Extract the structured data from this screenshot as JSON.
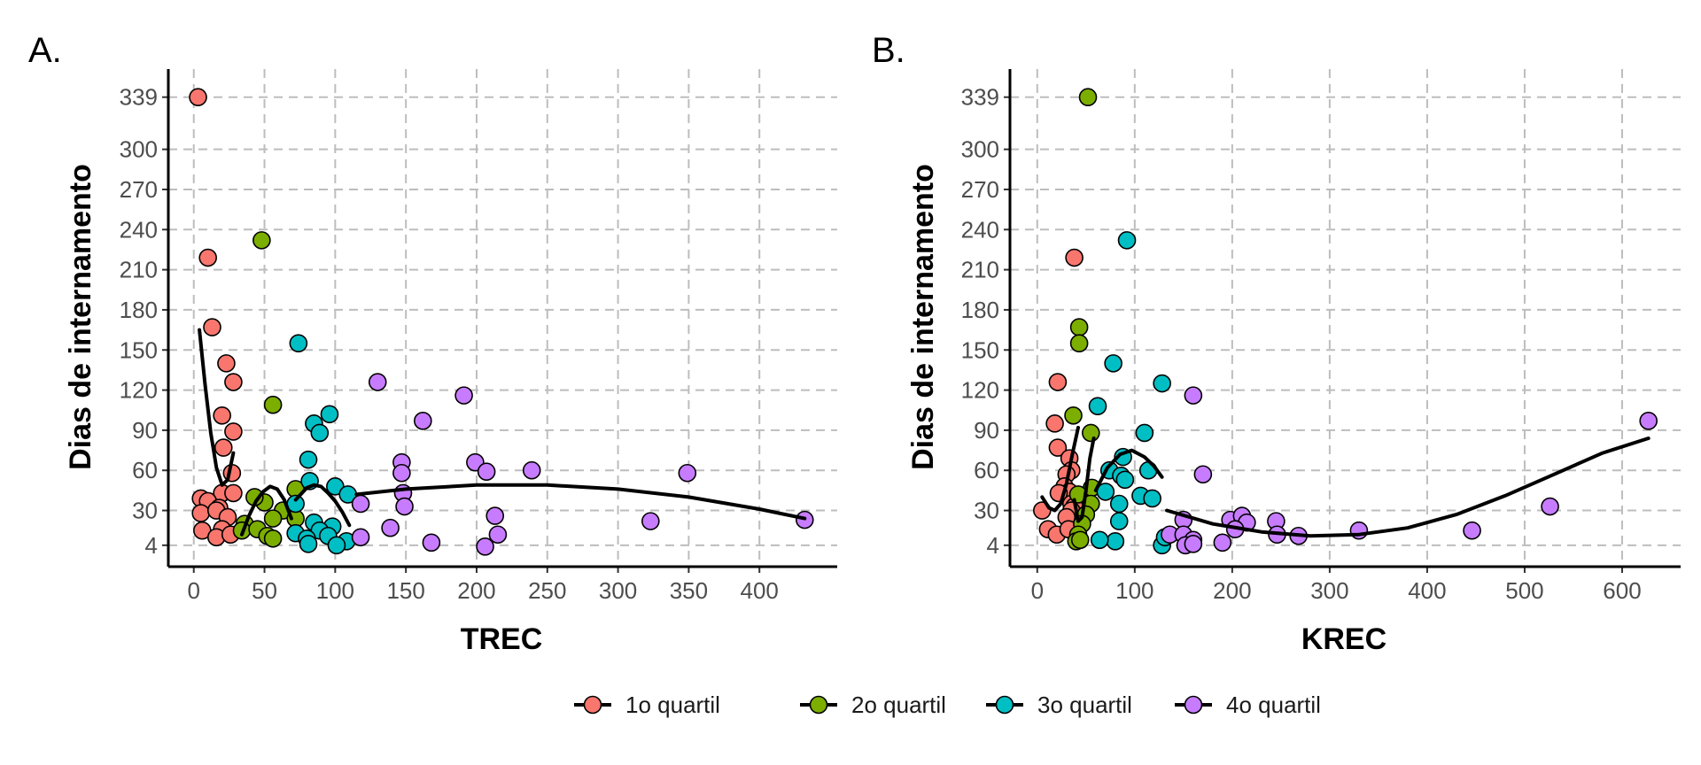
{
  "figure": {
    "legend": {
      "position": "bottom",
      "items": [
        {
          "label": "1o quartil",
          "color": "#F8766D"
        },
        {
          "label": "2o quartil",
          "color": "#7CAE00"
        },
        {
          "label": "3o quartil",
          "color": "#00BFC4"
        },
        {
          "label": "4o quartil",
          "color": "#C77CFF"
        }
      ]
    }
  },
  "chart_data": [
    {
      "type": "scatter",
      "panel": "A.",
      "xlabel": "TREC",
      "ylabel": "Dias de internamento",
      "xlim": [
        -18,
        455
      ],
      "ylim": [
        -12,
        360
      ],
      "xticks": [
        0,
        50,
        100,
        150,
        200,
        250,
        300,
        350,
        400
      ],
      "yticks": [
        4,
        30,
        60,
        90,
        120,
        150,
        180,
        210,
        240,
        270,
        300,
        339
      ],
      "grid": true,
      "legend": "bottom",
      "series": [
        {
          "name": "1o quartil",
          "color": "#F8766D",
          "points": [
            [
              3,
              339
            ],
            [
              10,
              219
            ],
            [
              13,
              167
            ],
            [
              23,
              140
            ],
            [
              28,
              126
            ],
            [
              20,
              101
            ],
            [
              28,
              89
            ],
            [
              21,
              77
            ],
            [
              27,
              58
            ],
            [
              20,
              43
            ],
            [
              28,
              43
            ],
            [
              5,
              39
            ],
            [
              10,
              37
            ],
            [
              18,
              32
            ],
            [
              5,
              28
            ],
            [
              16,
              30
            ],
            [
              24,
              25
            ],
            [
              6,
              15
            ],
            [
              20,
              16
            ],
            [
              16,
              10
            ],
            [
              26,
              12
            ]
          ],
          "trend": [
            [
              4,
              165
            ],
            [
              8,
              124
            ],
            [
              12,
              88
            ],
            [
              16,
              62
            ],
            [
              20,
              49
            ],
            [
              24,
              53
            ],
            [
              28,
              73
            ]
          ]
        },
        {
          "name": "2o quartil",
          "color": "#7CAE00",
          "points": [
            [
              48,
              232
            ],
            [
              56,
              109
            ],
            [
              72,
              46
            ],
            [
              50,
              36
            ],
            [
              43,
              40
            ],
            [
              63,
              30
            ],
            [
              56,
              24
            ],
            [
              72,
              24
            ],
            [
              36,
              20
            ],
            [
              34,
              15
            ],
            [
              45,
              16
            ],
            [
              52,
              11
            ],
            [
              56,
              9
            ]
          ],
          "trend": [
            [
              34,
              12
            ],
            [
              39,
              26
            ],
            [
              44,
              37
            ],
            [
              49,
              44
            ],
            [
              54,
              48
            ],
            [
              59,
              46
            ],
            [
              64,
              38
            ],
            [
              69,
              24
            ]
          ]
        },
        {
          "name": "3o quartil",
          "color": "#00BFC4",
          "points": [
            [
              74,
              155
            ],
            [
              96,
              102
            ],
            [
              85,
              95
            ],
            [
              89,
              88
            ],
            [
              81,
              68
            ],
            [
              82,
              52
            ],
            [
              100,
              48
            ],
            [
              109,
              42
            ],
            [
              72,
              35
            ],
            [
              85,
              21
            ],
            [
              98,
              18
            ],
            [
              89,
              15
            ],
            [
              72,
              13
            ],
            [
              80,
              9
            ],
            [
              95,
              11
            ],
            [
              108,
              7
            ],
            [
              81,
              5
            ],
            [
              101,
              4
            ]
          ],
          "trend": [
            [
              72,
              38
            ],
            [
              80,
              47
            ],
            [
              85,
              49
            ],
            [
              90,
              48
            ],
            [
              95,
              43
            ],
            [
              100,
              37
            ],
            [
              105,
              29
            ],
            [
              110,
              19
            ]
          ]
        },
        {
          "name": "4o quartil",
          "color": "#C77CFF",
          "points": [
            [
              130,
              126
            ],
            [
              191,
              116
            ],
            [
              162,
              97
            ],
            [
              147,
              66
            ],
            [
              199,
              66
            ],
            [
              147,
              58
            ],
            [
              207,
              59
            ],
            [
              239,
              60
            ],
            [
              349,
              58
            ],
            [
              148,
              43
            ],
            [
              118,
              35
            ],
            [
              149,
              33
            ],
            [
              213,
              26
            ],
            [
              139,
              17
            ],
            [
              215,
              12
            ],
            [
              118,
              10
            ],
            [
              168,
              6
            ],
            [
              206,
              3
            ],
            [
              323,
              22
            ],
            [
              432,
              23
            ]
          ],
          "trend": [
            [
              115,
              42
            ],
            [
              150,
              46
            ],
            [
              200,
              49
            ],
            [
              250,
              49
            ],
            [
              300,
              46
            ],
            [
              350,
              40
            ],
            [
              400,
              31
            ],
            [
              432,
              24
            ]
          ]
        }
      ]
    },
    {
      "type": "scatter",
      "panel": "B.",
      "xlabel": "KREC",
      "ylabel": "Dias de internamento",
      "xlim": [
        -28,
        660
      ],
      "ylim": [
        -12,
        360
      ],
      "xticks": [
        0,
        100,
        200,
        300,
        400,
        500,
        600
      ],
      "yticks": [
        4,
        30,
        60,
        90,
        120,
        150,
        180,
        210,
        240,
        270,
        300,
        339
      ],
      "grid": true,
      "legend": "bottom",
      "series": [
        {
          "name": "1o quartil",
          "color": "#F8766D",
          "points": [
            [
              38,
              219
            ],
            [
              21,
              126
            ],
            [
              18,
              95
            ],
            [
              21,
              77
            ],
            [
              33,
              69
            ],
            [
              35,
              60
            ],
            [
              30,
              57
            ],
            [
              28,
              48
            ],
            [
              33,
              44
            ],
            [
              22,
              43
            ],
            [
              35,
              35
            ],
            [
              38,
              33
            ],
            [
              35,
              30
            ],
            [
              5,
              30
            ],
            [
              30,
              25
            ],
            [
              11,
              16
            ],
            [
              20,
              12
            ],
            [
              32,
              16
            ]
          ],
          "trend": [
            [
              5,
              40
            ],
            [
              12,
              32
            ],
            [
              18,
              30
            ],
            [
              24,
              35
            ],
            [
              30,
              50
            ],
            [
              36,
              72
            ],
            [
              42,
              92
            ]
          ]
        },
        {
          "name": "2o quartil",
          "color": "#7CAE00",
          "points": [
            [
              52,
              339
            ],
            [
              43,
              167
            ],
            [
              43,
              155
            ],
            [
              37,
              101
            ],
            [
              55,
              88
            ],
            [
              56,
              47
            ],
            [
              42,
              42
            ],
            [
              55,
              35
            ],
            [
              50,
              27
            ],
            [
              46,
              20
            ],
            [
              42,
              12
            ],
            [
              40,
              7
            ],
            [
              44,
              8
            ]
          ],
          "trend": [
            [
              38,
              38
            ],
            [
              42,
              22
            ],
            [
              46,
              25
            ],
            [
              50,
              45
            ],
            [
              54,
              69
            ],
            [
              58,
              84
            ]
          ]
        },
        {
          "name": "3o quartil",
          "color": "#00BFC4",
          "points": [
            [
              92,
              232
            ],
            [
              78,
              140
            ],
            [
              128,
              125
            ],
            [
              62,
              108
            ],
            [
              110,
              88
            ],
            [
              88,
              70
            ],
            [
              74,
              60
            ],
            [
              86,
              56
            ],
            [
              90,
              53
            ],
            [
              114,
              60
            ],
            [
              106,
              41
            ],
            [
              118,
              39
            ],
            [
              70,
              44
            ],
            [
              84,
              35
            ],
            [
              84,
              22
            ],
            [
              80,
              7
            ],
            [
              64,
              8
            ],
            [
              128,
              4
            ],
            [
              131,
              10
            ]
          ],
          "trend": [
            [
              60,
              45
            ],
            [
              72,
              62
            ],
            [
              85,
              72
            ],
            [
              97,
              75
            ],
            [
              110,
              70
            ],
            [
              120,
              63
            ],
            [
              128,
              55
            ]
          ]
        },
        {
          "name": "4o quartil",
          "color": "#C77CFF",
          "points": [
            [
              627,
              97
            ],
            [
              160,
              116
            ],
            [
              170,
              57
            ],
            [
              526,
              33
            ],
            [
              150,
              23
            ],
            [
              198,
              23
            ],
            [
              210,
              26
            ],
            [
              215,
              21
            ],
            [
              245,
              22
            ],
            [
              203,
              16
            ],
            [
              246,
              12
            ],
            [
              268,
              11
            ],
            [
              330,
              15
            ],
            [
              446,
              15
            ],
            [
              136,
              12
            ],
            [
              150,
              12
            ],
            [
              160,
              8
            ],
            [
              152,
              4
            ],
            [
              160,
              5
            ],
            [
              190,
              6
            ]
          ],
          "trend": [
            [
              133,
              30
            ],
            [
              180,
              20
            ],
            [
              230,
              14
            ],
            [
              280,
              11
            ],
            [
              330,
              12
            ],
            [
              380,
              17
            ],
            [
              430,
              27
            ],
            [
              480,
              41
            ],
            [
              530,
              57
            ],
            [
              580,
              73
            ],
            [
              627,
              84
            ]
          ]
        }
      ]
    }
  ]
}
